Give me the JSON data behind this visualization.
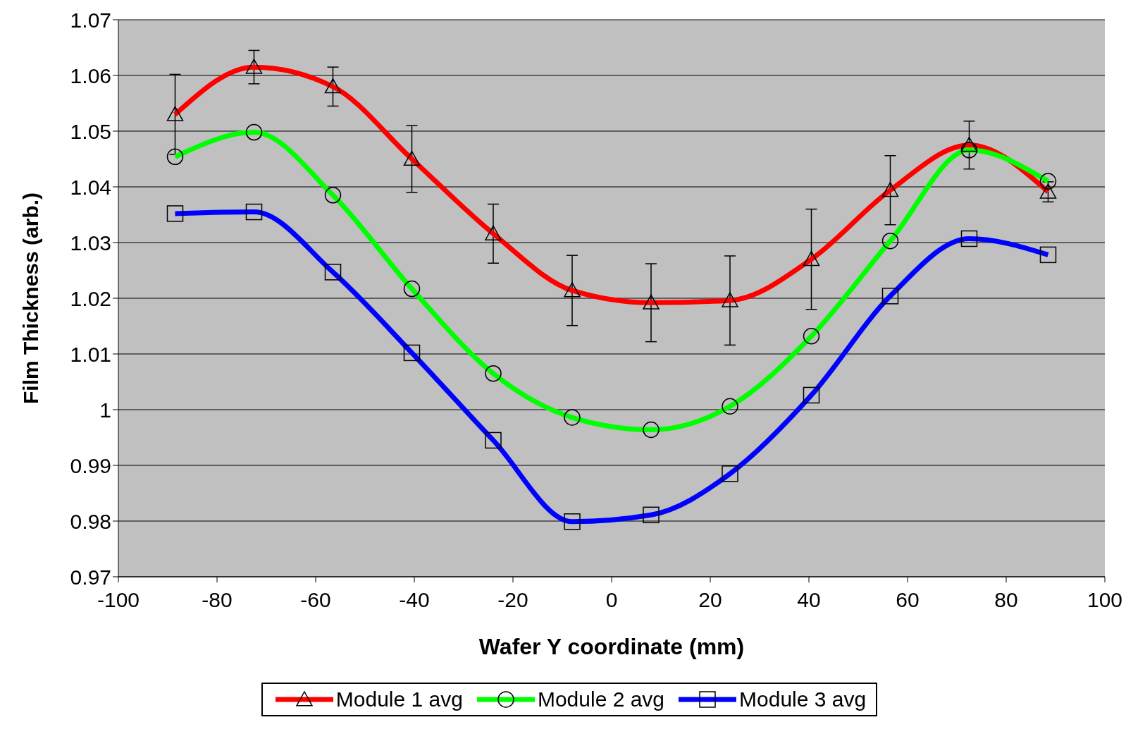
{
  "chart_data": {
    "type": "line",
    "xlabel": "Wafer Y coordinate (mm)",
    "ylabel": "Film Thickness (arb.)",
    "x": [
      -88.5,
      -72.5,
      -56.5,
      -40.5,
      -24,
      -8,
      8,
      24,
      40.5,
      56.5,
      72.5,
      88.5
    ],
    "series": [
      {
        "name": "Module 1 avg",
        "color": "#ff0000",
        "marker": "triangle",
        "values": [
          1.053,
          1.0615,
          1.058,
          1.045,
          1.0316,
          1.0214,
          1.0192,
          1.0196,
          1.027,
          1.0394,
          1.0475,
          1.0391
        ],
        "errors": [
          0.0072,
          0.003,
          0.0035,
          0.006,
          0.0053,
          0.0063,
          0.007,
          0.008,
          0.009,
          0.0062,
          0.0043,
          0.0018
        ]
      },
      {
        "name": "Module 2 avg",
        "color": "#00ff00",
        "marker": "circle",
        "values": [
          1.0454,
          1.0498,
          1.0385,
          1.0217,
          1.0065,
          0.9986,
          0.9964,
          1.0006,
          1.0132,
          1.0303,
          1.0466,
          1.041
        ]
      },
      {
        "name": "Module 3 avg",
        "color": "#0000ff",
        "marker": "square",
        "values": [
          1.0352,
          1.0355,
          1.0247,
          1.0102,
          0.9945,
          0.9799,
          0.9811,
          0.9885,
          1.0026,
          1.0204,
          1.0307,
          1.0278
        ]
      }
    ],
    "xlim": [
      -100,
      100
    ],
    "xticks": [
      -100,
      -80,
      -60,
      -40,
      -20,
      0,
      20,
      40,
      60,
      80,
      100
    ],
    "ylim": [
      0.97,
      1.07
    ],
    "yticks": [
      0.97,
      0.98,
      0.99,
      1,
      1.01,
      1.02,
      1.03,
      1.04,
      1.05,
      1.06,
      1.07
    ],
    "grid": "y",
    "legend": "bottom",
    "line_style": "solid"
  }
}
